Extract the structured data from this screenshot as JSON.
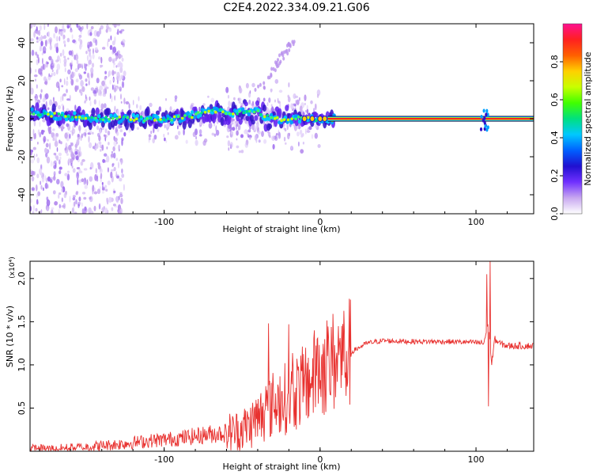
{
  "title": "C2E4.2022.334.09.21.G06",
  "chart_data": [
    {
      "type": "heatmap",
      "xlabel": "Height of straight line (km)",
      "ylabel": "Frequency (Hz)",
      "xlim": [
        -186,
        137
      ],
      "ylim": [
        -50,
        50
      ],
      "x_ticks": [
        -100,
        0,
        100
      ],
      "y_ticks": [
        -40,
        -20,
        0,
        20,
        40
      ],
      "colorbar": {
        "label": "Normalized spectral amplitude",
        "range": [
          0.0,
          1.0
        ],
        "ticks": [
          "0.0",
          "0.2",
          "0.4",
          "0.6",
          "0.8"
        ],
        "colormap": [
          "#ffffff",
          "#c8a8f0",
          "#7030ff",
          "#2010d0",
          "#0060ff",
          "#00c8ff",
          "#00e080",
          "#40ff00",
          "#c8ff00",
          "#ffd000",
          "#ff6000",
          "#ff2020",
          "#ff1090"
        ]
      },
      "ridge": {
        "x": [
          -185,
          -170,
          -155,
          -140,
          -125,
          -110,
          -95,
          -85,
          -75,
          -65,
          -58,
          -50,
          -42,
          -35,
          -28,
          -20,
          -12,
          -5,
          0,
          5,
          15,
          40,
          70,
          100,
          105,
          110,
          137
        ],
        "y": [
          3,
          2,
          1,
          0,
          0,
          0,
          0,
          1,
          3,
          4,
          3,
          4,
          4,
          1,
          0,
          0,
          0,
          0,
          0,
          0,
          0,
          0,
          0,
          0,
          0,
          0,
          0
        ]
      }
    },
    {
      "type": "line",
      "xlabel": "Height of straight line (km)",
      "ylabel": "SNR (10 * v/v)",
      "multiplier": "(x10⁴)",
      "xlim": [
        -186,
        137
      ],
      "ylim": [
        0,
        2.2
      ],
      "x_ticks": [
        -100,
        0,
        100
      ],
      "y_ticks": [
        "0.5",
        "1.0",
        "1.5",
        "2.0"
      ],
      "color": "#e8312f",
      "envelope": {
        "x": [
          -186,
          -170,
          -150,
          -130,
          -110,
          -90,
          -70,
          -55,
          -45,
          -40,
          -35,
          -30,
          -25,
          -20,
          -15,
          -10,
          -5,
          0,
          5,
          10,
          15,
          20,
          25,
          30,
          40,
          60,
          80,
          100,
          105,
          108,
          110,
          112,
          115,
          120,
          137
        ],
        "y": [
          0.03,
          0.03,
          0.05,
          0.08,
          0.12,
          0.15,
          0.2,
          0.22,
          0.3,
          0.4,
          0.45,
          0.55,
          0.6,
          0.62,
          0.7,
          0.75,
          0.85,
          0.95,
          1.0,
          1.05,
          1.1,
          1.15,
          1.2,
          1.25,
          1.28,
          1.27,
          1.27,
          1.26,
          1.25,
          1.5,
          1.0,
          1.3,
          1.25,
          1.22,
          1.22
        ]
      },
      "spikes": [
        {
          "x": -33,
          "y": 1.48
        },
        {
          "x": -20,
          "y": 1.47
        },
        {
          "x": -2,
          "y": 1.3
        },
        {
          "x": 14,
          "y": 1.45
        },
        {
          "x": 107,
          "y": 2.05
        },
        {
          "x": 109,
          "y": 2.2
        },
        {
          "x": 108,
          "y": 0.52
        }
      ]
    }
  ]
}
